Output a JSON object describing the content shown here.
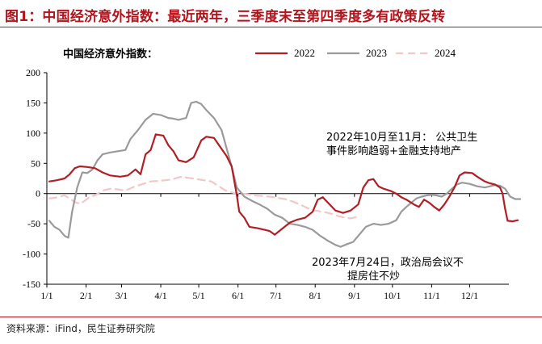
{
  "figure_title": "图1：中国经济意外指数：最近两年，三季度末至第四季度多有政策反转",
  "source_note": "资料来源：iFind，民生证券研究院",
  "colors": {
    "title_red": "#b3141b",
    "s2022": "#b01f24",
    "s2023": "#9a9a9a",
    "s2024": "#f2c7c7"
  },
  "chart_data": {
    "type": "line",
    "title": "中国经济意外指数：",
    "ylim": [
      -150,
      200
    ],
    "yticks": [
      "200",
      "150",
      "100",
      "50",
      "0",
      "-50",
      "-100",
      "-150"
    ],
    "ytick_values": [
      200,
      150,
      100,
      50,
      0,
      -50,
      -100,
      -150
    ],
    "xlim": [
      0,
      365
    ],
    "xticks": [
      "1/1",
      "2/1",
      "3/1",
      "4/1",
      "5/1",
      "6/1",
      "7/1",
      "8/1",
      "9/1",
      "10/1",
      "11/1",
      "12/1"
    ],
    "xtick_days": [
      0,
      31,
      59,
      90,
      120,
      151,
      181,
      212,
      243,
      273,
      304,
      334
    ],
    "grid": false,
    "legend_position": "top",
    "series": [
      {
        "name": "2022",
        "style": "solid",
        "points": [
          [
            2,
            20
          ],
          [
            8,
            22
          ],
          [
            14,
            25
          ],
          [
            18,
            32
          ],
          [
            22,
            42
          ],
          [
            26,
            45
          ],
          [
            32,
            44
          ],
          [
            38,
            42
          ],
          [
            44,
            35
          ],
          [
            50,
            30
          ],
          [
            58,
            28
          ],
          [
            64,
            30
          ],
          [
            70,
            40
          ],
          [
            74,
            32
          ],
          [
            78,
            65
          ],
          [
            82,
            72
          ],
          [
            86,
            98
          ],
          [
            92,
            96
          ],
          [
            96,
            80
          ],
          [
            100,
            70
          ],
          [
            104,
            55
          ],
          [
            110,
            52
          ],
          [
            116,
            60
          ],
          [
            122,
            88
          ],
          [
            126,
            94
          ],
          [
            132,
            92
          ],
          [
            136,
            80
          ],
          [
            142,
            62
          ],
          [
            146,
            45
          ],
          [
            150,
            -2
          ],
          [
            152,
            -30
          ],
          [
            156,
            -40
          ],
          [
            160,
            -55
          ],
          [
            166,
            -57
          ],
          [
            172,
            -60
          ],
          [
            176,
            -62
          ],
          [
            180,
            -68
          ],
          [
            186,
            -58
          ],
          [
            192,
            -48
          ],
          [
            198,
            -43
          ],
          [
            204,
            -40
          ],
          [
            210,
            -30
          ],
          [
            214,
            -10
          ],
          [
            218,
            -6
          ],
          [
            222,
            -15
          ],
          [
            228,
            -28
          ],
          [
            234,
            -32
          ],
          [
            240,
            -28
          ],
          [
            246,
            -18
          ],
          [
            250,
            10
          ],
          [
            254,
            22
          ],
          [
            258,
            24
          ],
          [
            262,
            12
          ],
          [
            266,
            8
          ],
          [
            272,
            4
          ],
          [
            276,
            0
          ],
          [
            280,
            -6
          ],
          [
            284,
            -10
          ],
          [
            290,
            -18
          ],
          [
            294,
            -22
          ],
          [
            298,
            -10
          ],
          [
            302,
            -15
          ],
          [
            306,
            -22
          ],
          [
            310,
            -28
          ],
          [
            314,
            -18
          ],
          [
            318,
            -5
          ],
          [
            322,
            10
          ],
          [
            326,
            30
          ],
          [
            330,
            35
          ],
          [
            336,
            34
          ],
          [
            340,
            28
          ],
          [
            346,
            20
          ],
          [
            350,
            17
          ],
          [
            354,
            15
          ],
          [
            358,
            10
          ],
          [
            360,
            0
          ],
          [
            362,
            -25
          ],
          [
            364,
            -45
          ],
          [
            368,
            -46
          ],
          [
            372,
            -44
          ]
        ]
      },
      {
        "name": "2023",
        "style": "solid",
        "points": [
          [
            2,
            -45
          ],
          [
            6,
            -55
          ],
          [
            10,
            -60
          ],
          [
            14,
            -70
          ],
          [
            17,
            -73
          ],
          [
            20,
            -30
          ],
          [
            24,
            10
          ],
          [
            28,
            35
          ],
          [
            32,
            34
          ],
          [
            36,
            40
          ],
          [
            40,
            55
          ],
          [
            44,
            65
          ],
          [
            50,
            68
          ],
          [
            56,
            70
          ],
          [
            62,
            72
          ],
          [
            66,
            90
          ],
          [
            72,
            105
          ],
          [
            78,
            122
          ],
          [
            84,
            132
          ],
          [
            90,
            130
          ],
          [
            96,
            125
          ],
          [
            100,
            124
          ],
          [
            104,
            122
          ],
          [
            110,
            125
          ],
          [
            114,
            150
          ],
          [
            118,
            152
          ],
          [
            122,
            148
          ],
          [
            126,
            138
          ],
          [
            132,
            125
          ],
          [
            138,
            105
          ],
          [
            142,
            75
          ],
          [
            146,
            45
          ],
          [
            150,
            10
          ],
          [
            156,
            -5
          ],
          [
            162,
            -12
          ],
          [
            168,
            -18
          ],
          [
            174,
            -25
          ],
          [
            180,
            -35
          ],
          [
            186,
            -40
          ],
          [
            192,
            -50
          ],
          [
            198,
            -52
          ],
          [
            204,
            -55
          ],
          [
            210,
            -60
          ],
          [
            216,
            -70
          ],
          [
            222,
            -78
          ],
          [
            228,
            -85
          ],
          [
            232,
            -88
          ],
          [
            238,
            -83
          ],
          [
            242,
            -80
          ],
          [
            248,
            -65
          ],
          [
            252,
            -55
          ],
          [
            258,
            -50
          ],
          [
            264,
            -52
          ],
          [
            270,
            -50
          ],
          [
            276,
            -44
          ],
          [
            280,
            -30
          ],
          [
            284,
            -22
          ],
          [
            288,
            -15
          ],
          [
            292,
            -8
          ],
          [
            296,
            -5
          ],
          [
            300,
            -3
          ],
          [
            304,
            -2
          ],
          [
            308,
            -3
          ],
          [
            312,
            -5
          ],
          [
            316,
            0
          ],
          [
            320,
            8
          ],
          [
            324,
            15
          ],
          [
            328,
            18
          ],
          [
            334,
            16
          ],
          [
            340,
            12
          ],
          [
            346,
            10
          ],
          [
            350,
            12
          ],
          [
            354,
            14
          ],
          [
            358,
            13
          ],
          [
            362,
            8
          ],
          [
            366,
            -5
          ],
          [
            370,
            -9
          ],
          [
            374,
            -9
          ]
        ]
      },
      {
        "name": "2024",
        "style": "dashed",
        "points": [
          [
            2,
            -8
          ],
          [
            6,
            -7
          ],
          [
            10,
            -5
          ],
          [
            14,
            -3
          ],
          [
            18,
            -8
          ],
          [
            22,
            -14
          ],
          [
            26,
            -17
          ],
          [
            30,
            -12
          ],
          [
            34,
            -5
          ],
          [
            38,
            -3
          ],
          [
            44,
            5
          ],
          [
            50,
            8
          ],
          [
            56,
            7
          ],
          [
            62,
            5
          ],
          [
            70,
            12
          ],
          [
            76,
            16
          ],
          [
            82,
            20
          ],
          [
            88,
            21
          ],
          [
            94,
            22
          ],
          [
            100,
            24
          ],
          [
            106,
            28
          ],
          [
            112,
            26
          ],
          [
            118,
            24
          ],
          [
            124,
            22
          ],
          [
            130,
            20
          ],
          [
            136,
            12
          ],
          [
            142,
            4
          ],
          [
            148,
            1
          ],
          [
            152,
            1
          ],
          [
            158,
            -1
          ],
          [
            164,
            -3
          ],
          [
            170,
            -4
          ],
          [
            176,
            -5
          ],
          [
            182,
            -7
          ],
          [
            188,
            -9
          ],
          [
            194,
            -13
          ],
          [
            200,
            -18
          ],
          [
            206,
            -24
          ],
          [
            212,
            -28
          ],
          [
            218,
            -30
          ],
          [
            224,
            -33
          ],
          [
            230,
            -37
          ],
          [
            236,
            -40
          ],
          [
            240,
            -41
          ],
          [
            244,
            -39
          ]
        ]
      }
    ],
    "annotations": [
      {
        "lines": [
          "2022年10月至11月：  公共卫生",
          "事件影响趋弱+金融支持地产"
        ]
      },
      {
        "lines": [
          "2023年7月24日，政治局会议不",
          "提房住不炒"
        ]
      }
    ]
  }
}
